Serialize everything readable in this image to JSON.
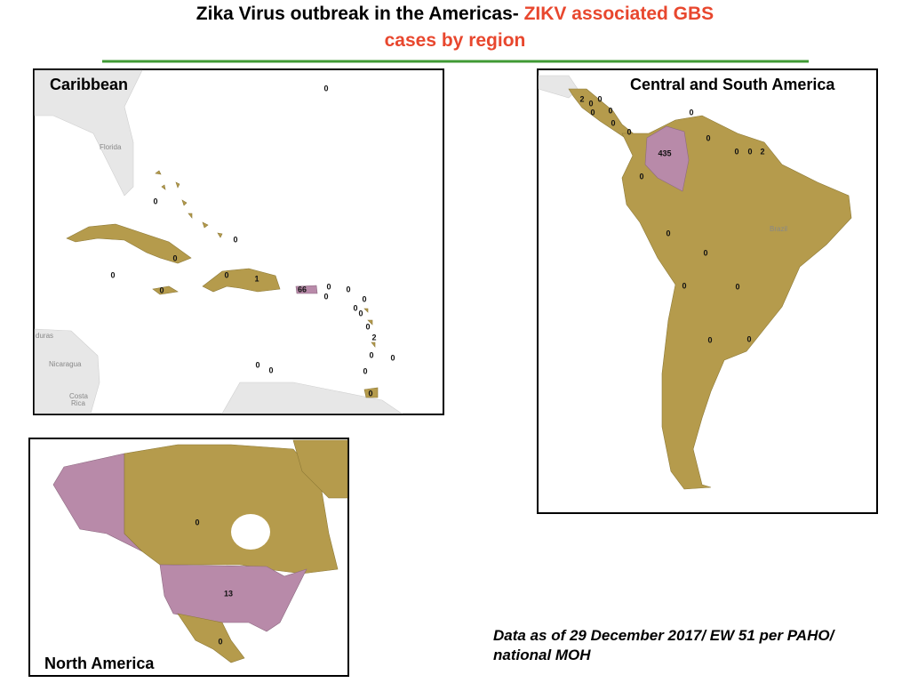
{
  "title": {
    "lead": "Zika Virus outbreak in the Americas-",
    "highlight": [
      "ZIKV associated GBS",
      "cases by region"
    ]
  },
  "panels": {
    "caribbean": {
      "title": "Caribbean",
      "place_labels": [
        "Florida",
        "duras",
        "Nicaragua",
        "Costa",
        "Rica"
      ],
      "case_counts": [
        0,
        0,
        0,
        0,
        0,
        0,
        1,
        66,
        0,
        0,
        0,
        0,
        0,
        0,
        0,
        0,
        2,
        0,
        0,
        0,
        0,
        0,
        0
      ]
    },
    "central_south": {
      "title": "Central and South America",
      "place_labels": [
        "Brazil"
      ],
      "case_counts": [
        2,
        0,
        0,
        0,
        0,
        0,
        0,
        0,
        435,
        0,
        0,
        0,
        2,
        0,
        0,
        0,
        0,
        0,
        0,
        0
      ]
    },
    "north": {
      "title": "North America",
      "case_counts": [
        0,
        13,
        0
      ]
    }
  },
  "footnote": [
    "Data as of 29 December 2017/ EW 51 per PAHO/",
    "national MOH"
  ]
}
